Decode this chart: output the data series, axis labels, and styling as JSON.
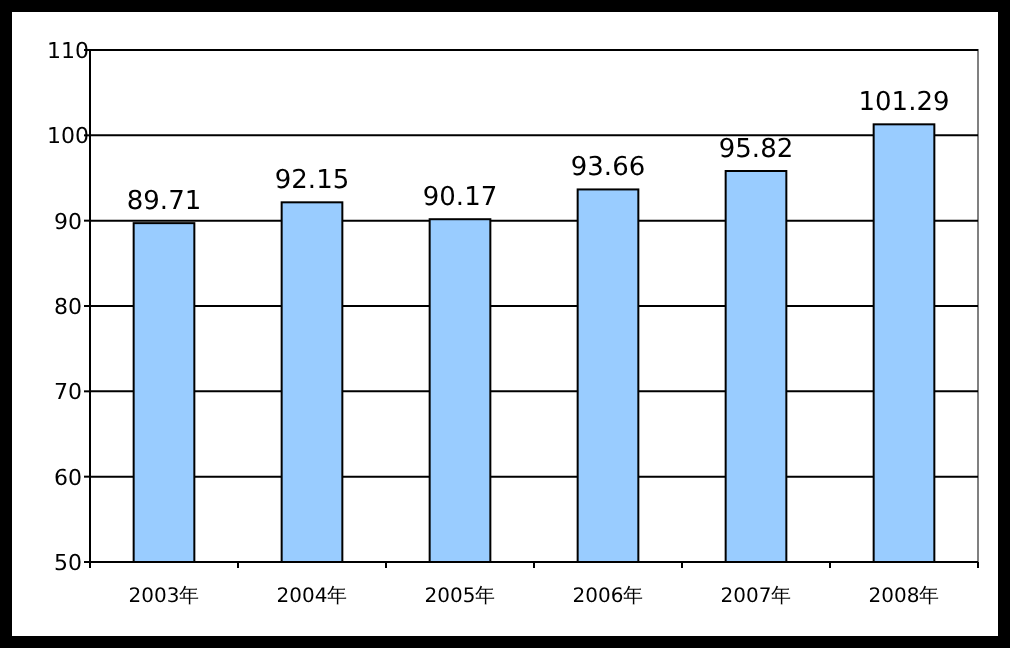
{
  "chart_data": {
    "type": "bar",
    "categories": [
      "2003年",
      "2004年",
      "2005年",
      "2006年",
      "2007年",
      "2008年"
    ],
    "values": [
      89.71,
      92.15,
      90.17,
      93.66,
      95.82,
      101.29
    ],
    "color": "#99ccff",
    "data_labels": true,
    "grid": "y",
    "ylim": [
      50,
      110
    ],
    "yticks": [
      50,
      60,
      70,
      80,
      90,
      100,
      110
    ]
  }
}
